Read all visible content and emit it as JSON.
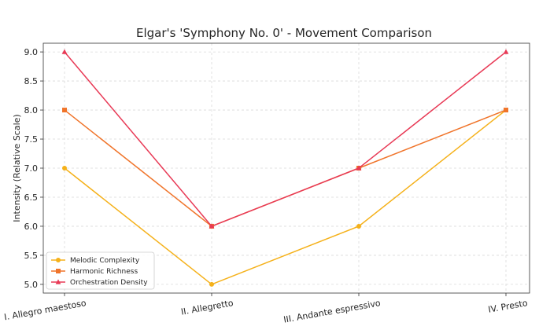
{
  "chart_data": {
    "type": "line",
    "title": "Elgar's 'Symphony No. 0' - Movement Comparison",
    "xlabel": "",
    "ylabel": "Intensity (Relative Scale)",
    "categories": [
      "I. Allegro maestoso",
      "II. Allegretto",
      "III. Andante espressivo",
      "IV. Presto"
    ],
    "ylim": [
      4.85,
      9.15
    ],
    "yticks": [
      "5.0",
      "5.5",
      "6.0",
      "6.5",
      "7.0",
      "7.5",
      "8.0",
      "8.5",
      "9.0"
    ],
    "grid": true,
    "legend_position": "lower-left",
    "series": [
      {
        "name": "Melodic Complexity",
        "values": [
          7,
          5,
          6,
          8
        ],
        "color": "#f5b11a",
        "marker": "circle"
      },
      {
        "name": "Harmonic Richness",
        "values": [
          8,
          6,
          7,
          8
        ],
        "color": "#f0742a",
        "marker": "square"
      },
      {
        "name": "Orchestration Density",
        "values": [
          9,
          6,
          7,
          9
        ],
        "color": "#e83a56",
        "marker": "triangle"
      }
    ]
  }
}
